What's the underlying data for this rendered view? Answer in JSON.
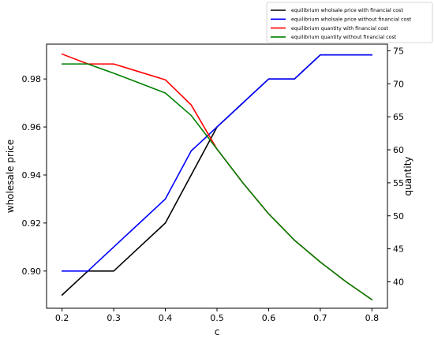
{
  "chart_data": {
    "type": "line",
    "xlabel": "c",
    "ylabel_left": "wholesale price",
    "ylabel_right": "quantity",
    "xlim": [
      0.17,
      0.83
    ],
    "ylim_left": [
      0.8845,
      0.9945
    ],
    "ylim_right": [
      36.0,
      76.0
    ],
    "x_ticks": [
      0.2,
      0.3,
      0.4,
      0.5,
      0.6,
      0.7,
      0.8
    ],
    "y_left_ticks": [
      0.9,
      0.92,
      0.94,
      0.96,
      0.98
    ],
    "y_right_ticks": [
      40,
      45,
      50,
      55,
      60,
      65,
      70,
      75
    ],
    "legend_position": "above-top-right",
    "grid": false,
    "x": [
      0.2,
      0.25,
      0.3,
      0.35,
      0.4,
      0.45,
      0.5,
      0.55,
      0.6,
      0.65,
      0.7,
      0.75,
      0.8
    ],
    "series": [
      {
        "name": "equilibrium wholsale price with financial cost",
        "axis": "left",
        "color": "#000000",
        "values": [
          0.89,
          0.9,
          0.9,
          0.91,
          0.92,
          0.94,
          0.96,
          0.97,
          0.98,
          0.98,
          0.99,
          0.99,
          0.99
        ]
      },
      {
        "name": "equilibrium wholsale price without financial cost",
        "axis": "left",
        "color": "#0000ff",
        "values": [
          0.9,
          0.9,
          0.91,
          0.92,
          0.93,
          0.95,
          0.96,
          0.97,
          0.98,
          0.98,
          0.99,
          0.99,
          0.99
        ]
      },
      {
        "name": "equilibrium quantity with financial cost",
        "axis": "right",
        "color": "#ff0000",
        "values": [
          74.5,
          73.0,
          73.0,
          71.8,
          70.6,
          66.8,
          60.1,
          55.0,
          50.3,
          46.3,
          43.0,
          40.0,
          37.3
        ]
      },
      {
        "name": "equilibrium quantity without financial cost",
        "axis": "right",
        "color": "#008000",
        "values": [
          73.0,
          73.0,
          71.6,
          70.1,
          68.6,
          65.2,
          60.1,
          55.0,
          50.3,
          46.3,
          43.0,
          40.0,
          37.3
        ]
      }
    ]
  }
}
